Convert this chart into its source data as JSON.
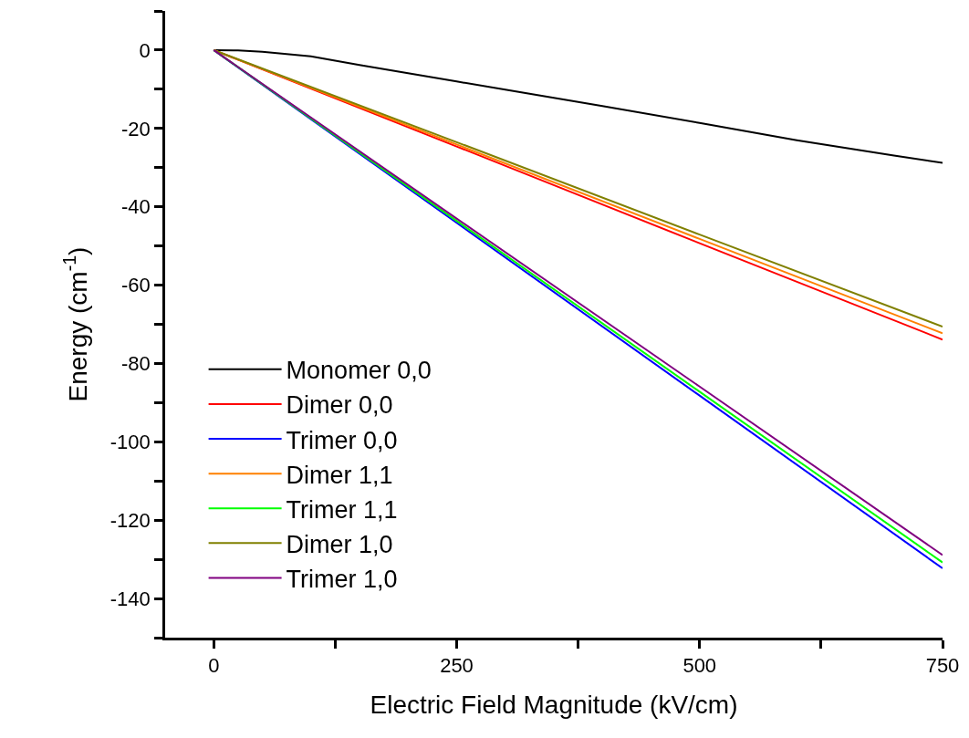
{
  "chart_data": {
    "type": "line",
    "xlabel": "Electric Field Magnitude (kV/cm)",
    "ylabel": "Energy (cm$^{-1}$)",
    "xlim": [
      -50,
      750
    ],
    "xticks": [
      0,
      {
        "value": 125,
        "label": null
      },
      250,
      {
        "value": 375,
        "label": null
      },
      500,
      {
        "value": 625,
        "label": null
      },
      750
    ],
    "ylim": [
      -150,
      10
    ],
    "yticks": [
      {
        "value": -150,
        "label": null
      },
      -140,
      {
        "value": -130,
        "label": null
      },
      -120,
      {
        "value": -110,
        "label": null
      },
      -100,
      {
        "value": -90,
        "label": null
      },
      -80,
      {
        "value": -70,
        "label": null
      },
      -60,
      {
        "value": -50,
        "label": null
      },
      -40,
      {
        "value": -30,
        "label": null
      },
      -20,
      {
        "value": -10,
        "label": null
      },
      0,
      {
        "value": 10,
        "label": null
      }
    ],
    "grid": false,
    "legend": "bottom left",
    "marker": "none",
    "line_style": "solid",
    "series": [
      {
        "name": "Monomer 0,0",
        "color": "#000000",
        "x": [
          0,
          25,
          50,
          100,
          150,
          200,
          250,
          300,
          400,
          500,
          600,
          700,
          750
        ],
        "values": [
          0,
          -0.1,
          -0.4,
          -1.6,
          -3.8,
          -5.9,
          -8.0,
          -10.1,
          -14.3,
          -18.6,
          -23.0,
          -26.9,
          -28.8
        ]
      },
      {
        "name": "Dimer 0,0",
        "color": "#ff0000",
        "x": [
          0,
          250,
          500,
          750
        ],
        "values": [
          0,
          -24.6,
          -49.3,
          -73.9
        ]
      },
      {
        "name": "Trimer 0,0",
        "color": "#0000ff",
        "x": [
          0,
          250,
          500,
          750
        ],
        "values": [
          0,
          -44.1,
          -88.2,
          -132.3
        ]
      },
      {
        "name": "Dimer 1,1",
        "color": "#ff8000",
        "x": [
          0,
          250,
          500,
          750
        ],
        "values": [
          0,
          -24.1,
          -48.2,
          -72.3
        ]
      },
      {
        "name": "Trimer 1,1",
        "color": "#00ff00",
        "x": [
          0,
          250,
          500,
          750
        ],
        "values": [
          0,
          -43.6,
          -87.2,
          -130.8
        ]
      },
      {
        "name": "Dimer 1,0",
        "color": "#808000",
        "x": [
          0,
          250,
          500,
          750
        ],
        "values": [
          0,
          -23.5,
          -47.1,
          -70.6
        ]
      },
      {
        "name": "Trimer 1,0",
        "color": "#800080",
        "x": [
          0,
          250,
          500,
          750
        ],
        "values": [
          0,
          -43.0,
          -85.9,
          -128.9
        ]
      }
    ]
  }
}
